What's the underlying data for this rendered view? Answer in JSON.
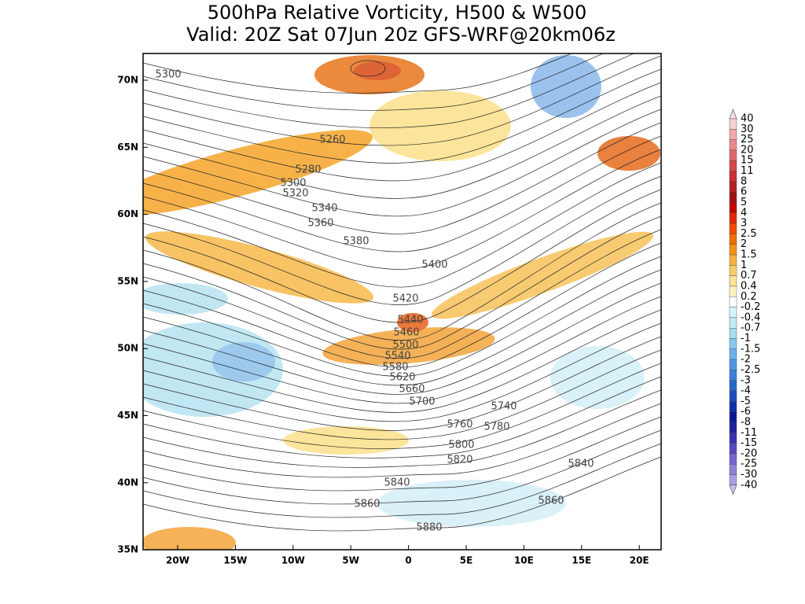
{
  "title": {
    "line1": "500hPa Relative Vorticity, H500 & W500",
    "line2": "Valid: 20Z Sat 07Jun 20z GFS-WRF@20km06z"
  },
  "latitude_labels": [
    "70N",
    "65N",
    "60N",
    "55N",
    "50N",
    "45N",
    "40N",
    "35N"
  ],
  "longitude_labels": [
    "20W",
    "15W",
    "10W",
    "5W",
    "0",
    "5E",
    "10E",
    "15E",
    "20E"
  ],
  "contour_labels": [
    "5300",
    "5260",
    "5280",
    "5300",
    "5320",
    "5340",
    "5360",
    "5380",
    "5400",
    "5420",
    "5440",
    "5460",
    "5500",
    "5540",
    "5580",
    "5620",
    "5660",
    "5700",
    "5740",
    "5760",
    "5780",
    "5800",
    "5820",
    "5840",
    "5840",
    "5860",
    "5860",
    "5880"
  ],
  "colorbar": {
    "labels": [
      "40",
      "30",
      "25",
      "20",
      "15",
      "11",
      "8",
      "6",
      "5",
      "4",
      "3",
      "2.5",
      "2",
      "1.5",
      "1",
      "0.7",
      "0.4",
      "0.2",
      "-0.2",
      "-0.4",
      "-0.7",
      "-1",
      "-1.5",
      "-2",
      "-2.5",
      "-3",
      "-4",
      "-5",
      "-6",
      "-8",
      "-11",
      "-15",
      "-20",
      "-25",
      "-30",
      "-40"
    ]
  }
}
